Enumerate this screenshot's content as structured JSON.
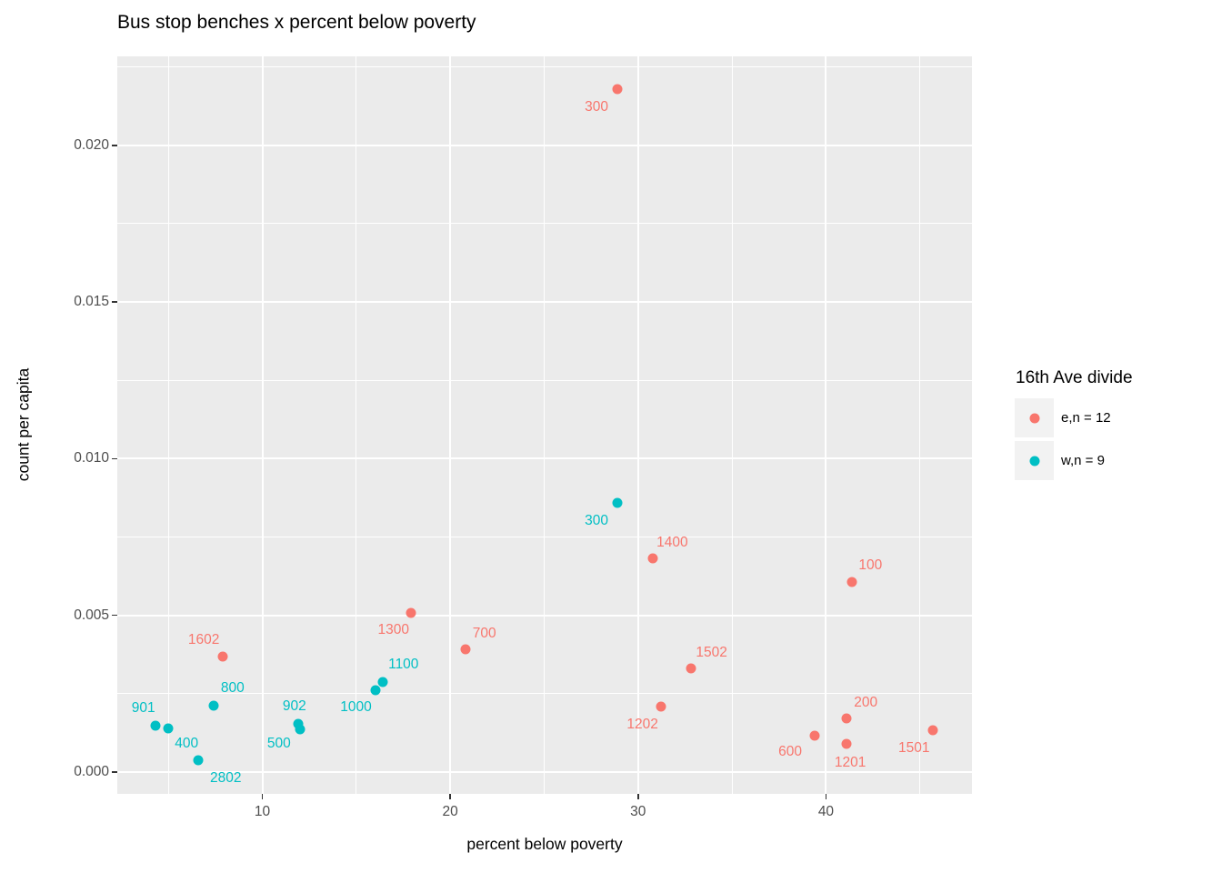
{
  "title": "Bus stop benches x percent below poverty",
  "axes": {
    "x": {
      "title": "percent below poverty",
      "tick_labels": [
        "10",
        "20",
        "30",
        "40"
      ],
      "tick_values": [
        10,
        20,
        30,
        40
      ],
      "minor_ticks": [
        5,
        15,
        25,
        35,
        45
      ]
    },
    "y": {
      "title": "count per capita",
      "tick_labels": [
        "0.000",
        "0.005",
        "0.010",
        "0.015",
        "0.020"
      ],
      "tick_values": [
        0,
        0.005,
        0.01,
        0.015,
        0.02
      ],
      "minor_ticks": [
        0.0025,
        0.0075,
        0.0125,
        0.0175,
        0.0225
      ]
    }
  },
  "legend": {
    "title": "16th Ave divide",
    "entries": [
      {
        "label": "e,n = 12",
        "color": "#F8766D"
      },
      {
        "label": "w,n = 9",
        "color": "#00BFC4"
      }
    ]
  },
  "colors": {
    "east": "#F8766D",
    "west": "#00BFC4",
    "panel_background": "#EBEBEB",
    "gridline": "#FFFFFF",
    "legend_key_background": "#F2F2F2",
    "tick_label": "#4D4D4D",
    "tick_mark": "#333333",
    "title_text": "#000000"
  },
  "chart_data": {
    "type": "scatter",
    "title": "Bus stop benches x percent below poverty",
    "xlabel": "percent below poverty",
    "ylabel": "count per capita",
    "xlim": [
      2.28,
      47.77
    ],
    "ylim": [
      -0.0007,
      0.02284
    ],
    "grid": "major+minor",
    "legend_title": "16th Ave divide",
    "legend_position": "right",
    "series": [
      {
        "name": "e",
        "legend_label": "e,n = 12",
        "color": "#F8766D",
        "points": [
          {
            "label": "300",
            "x": 28.9,
            "y": 0.0218,
            "label_dx": -23,
            "label_dy": 20
          },
          {
            "label": "1400",
            "x": 30.8,
            "y": 0.00682,
            "label_dx": 21,
            "label_dy": -17
          },
          {
            "label": "100",
            "x": 41.4,
            "y": 0.00607,
            "label_dx": 20,
            "label_dy": -18
          },
          {
            "label": "1300",
            "x": 17.9,
            "y": 0.00508,
            "label_dx": -19,
            "label_dy": 19
          },
          {
            "label": "700",
            "x": 20.8,
            "y": 0.00392,
            "label_dx": 21,
            "label_dy": -17
          },
          {
            "label": "1602",
            "x": 7.9,
            "y": 0.00369,
            "label_dx": -21,
            "label_dy": -18
          },
          {
            "label": "1502",
            "x": 32.8,
            "y": 0.00331,
            "label_dx": 23,
            "label_dy": -17
          },
          {
            "label": "1202",
            "x": 31.2,
            "y": 0.00209,
            "label_dx": -20,
            "label_dy": 20
          },
          {
            "label": "200",
            "x": 41.1,
            "y": 0.00171,
            "label_dx": 21,
            "label_dy": -17
          },
          {
            "label": "1501",
            "x": 45.7,
            "y": 0.00134,
            "label_dx": -21,
            "label_dy": 20
          },
          {
            "label": "600",
            "x": 39.4,
            "y": 0.00116,
            "label_dx": -27,
            "label_dy": 18
          },
          {
            "label": "1201",
            "x": 41.1,
            "y": 0.0009,
            "label_dx": 4,
            "label_dy": 21
          }
        ]
      },
      {
        "name": "w",
        "legend_label": "w,n = 9",
        "color": "#00BFC4",
        "points": [
          {
            "label": "300",
            "x": 28.9,
            "y": 0.00859,
            "label_dx": -23,
            "label_dy": 20
          },
          {
            "label": "1100",
            "x": 16.4,
            "y": 0.00287,
            "label_dx": 23,
            "label_dy": -19
          },
          {
            "label": "1000",
            "x": 16.0,
            "y": 0.00261,
            "label_dx": -21,
            "label_dy": 19
          },
          {
            "label": "800",
            "x": 7.4,
            "y": 0.00212,
            "label_dx": 21,
            "label_dy": -19
          },
          {
            "label": "902",
            "x": 11.9,
            "y": 0.00154,
            "label_dx": -4,
            "label_dy": -19
          },
          {
            "label": "901",
            "x": 4.3,
            "y": 0.00148,
            "label_dx": -13,
            "label_dy": -19
          },
          {
            "label": "400",
            "x": 5.0,
            "y": 0.00139,
            "label_dx": 20,
            "label_dy": 17
          },
          {
            "label": "500",
            "x": 12.0,
            "y": 0.00136,
            "label_dx": -23,
            "label_dy": 16
          },
          {
            "label": "2802",
            "x": 6.6,
            "y": 0.00038,
            "label_dx": 30,
            "label_dy": 20
          }
        ]
      }
    ]
  }
}
